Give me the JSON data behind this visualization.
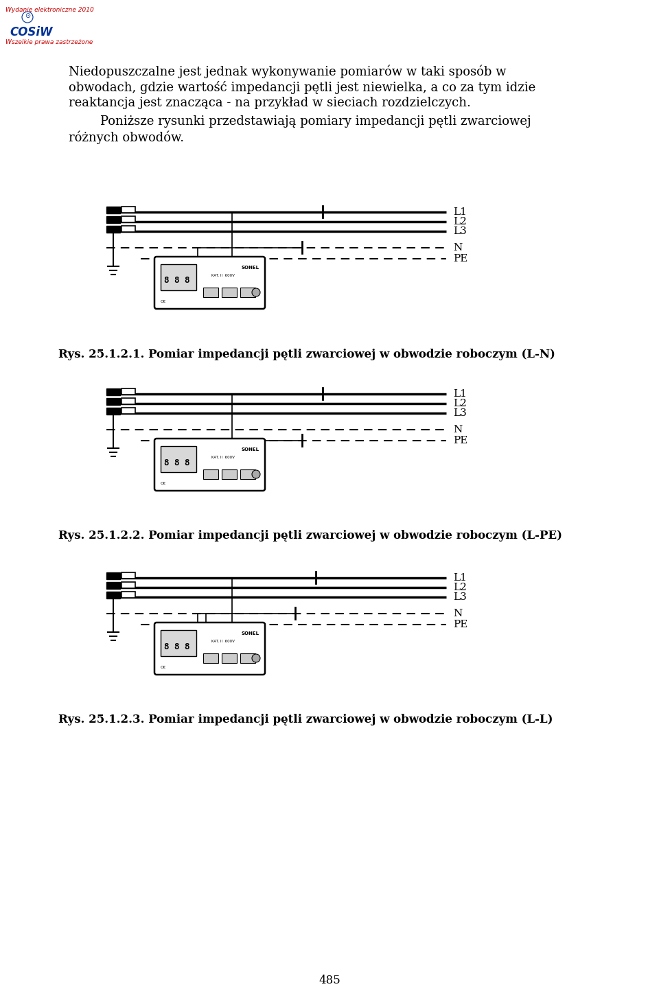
{
  "page_width": 9.6,
  "page_height": 14.41,
  "background_color": "#ffffff",
  "header_text1": "Wydanie elektroniczne 2010",
  "header_text2": "COSiW",
  "header_text3": "Wszelkie prawa zastrzeżone",
  "header_color": "#cc0000",
  "header_logo_color": "#003399",
  "lines_para1": [
    "Niedopuszczalne jest jednak wykonywanie pomiarów w taki sposób w",
    "obwodach, gdzie wartość impedancji pętli jest niewielka, a co za tym idzie",
    "reaktancja jest znacząca - na przykład w sieciach rozdzielczych."
  ],
  "lines_para2": [
    "        Poniższe rysunki przedstawiają pomiary impedancji pętli zwarciowej",
    "różnych obwodów."
  ],
  "caption1": "Rys. 25.1.2.1. Pomiar impedancji pętli zwarciowej w obwodzie roboczym (L-N)",
  "caption2": "Rys. 25.1.2.2. Pomiar impedancji pętli zwarciowej w obwodzie roboczym (L-PE)",
  "caption3": "Rys. 25.1.2.3. Pomiar impedancji pętli zwarciowej w obwodzie roboczym (L-L)",
  "line_labels": [
    "L1",
    "L2",
    "L3",
    "N",
    "PE"
  ],
  "page_number": "485",
  "text_color": "#000000",
  "line_color": "#000000",
  "dashed_color": "#000000"
}
